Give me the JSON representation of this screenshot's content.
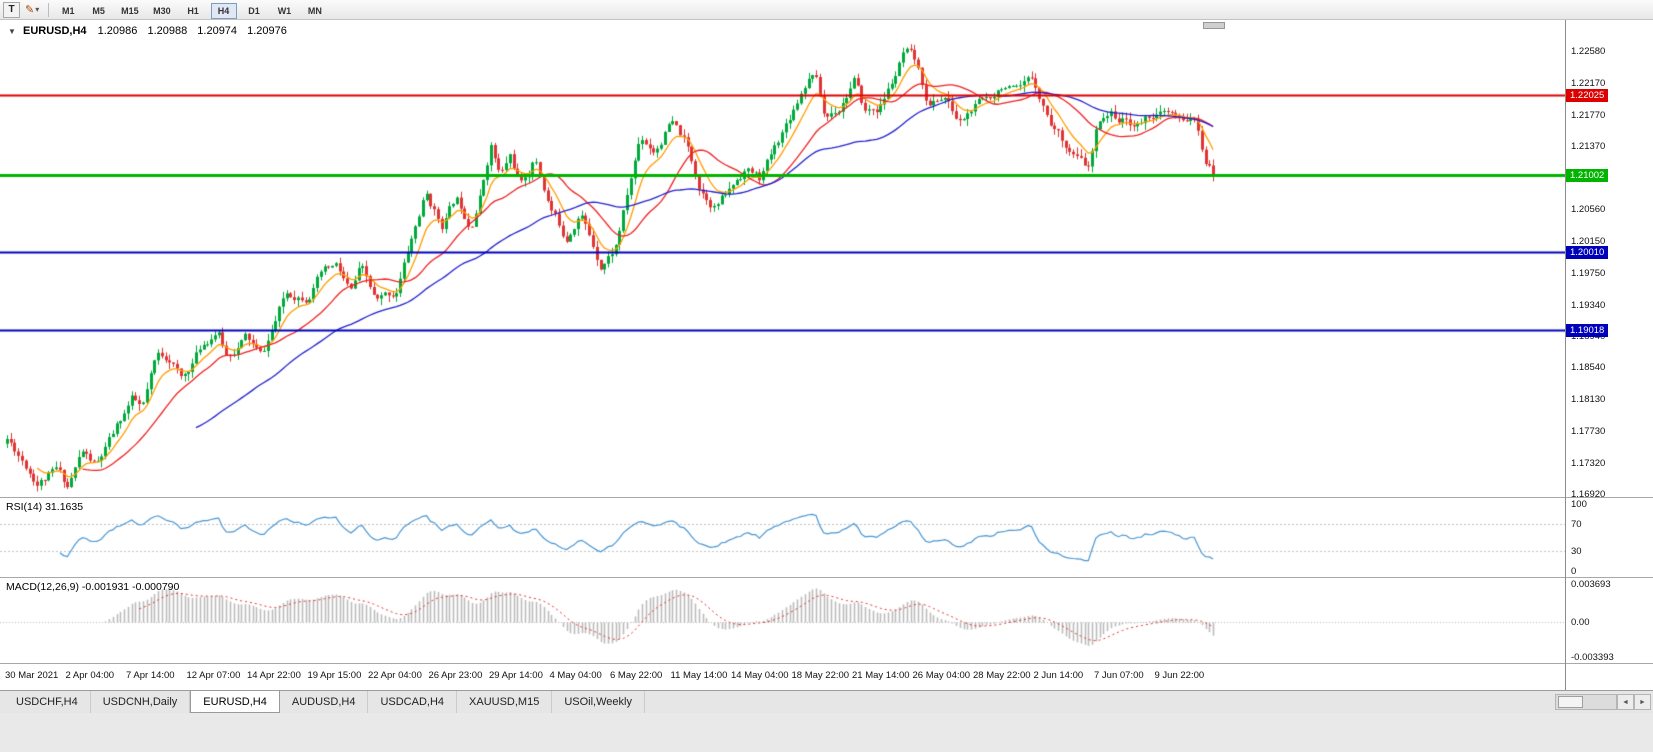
{
  "toolbar": {
    "text_tool_label": "T",
    "pencil_icon": "✎",
    "chevron": "▾",
    "timeframes": [
      "M1",
      "M5",
      "M15",
      "M30",
      "H1",
      "H4",
      "D1",
      "W1",
      "MN"
    ],
    "active_timeframe": "H4"
  },
  "chart_header": {
    "collapse_icon": "▼",
    "symbol": "EURUSD,H4",
    "open": "1.20986",
    "high": "1.20988",
    "low": "1.20974",
    "close": "1.20976"
  },
  "price_axis": [
    "1.22580",
    "1.22170",
    "1.21770",
    "1.21370",
    "1.20960",
    "1.20560",
    "1.20150",
    "1.19750",
    "1.19340",
    "1.18940",
    "1.18540",
    "1.18130",
    "1.17730",
    "1.17320",
    "1.16920"
  ],
  "hlines": [
    {
      "price": 1.22025,
      "label": "1.22025",
      "color": "#dd0000",
      "width": 2
    },
    {
      "price": 1.21002,
      "label": "1.21002",
      "color": "#00b400",
      "width": 3
    },
    {
      "price": 1.2001,
      "label": "1.20010",
      "color": "#0000bb",
      "width": 2
    },
    {
      "price": 1.19018,
      "label": "1.19018",
      "color": "#0000bb",
      "width": 2
    }
  ],
  "time_axis": [
    "30 Mar 2021",
    "2 Apr 04:00",
    "7 Apr 14:00",
    "12 Apr 07:00",
    "14 Apr 22:00",
    "19 Apr 15:00",
    "22 Apr 04:00",
    "26 Apr 23:00",
    "29 Apr 14:00",
    "4 May 04:00",
    "6 May 22:00",
    "11 May 14:00",
    "14 May 04:00",
    "18 May 22:00",
    "21 May 14:00",
    "26 May 04:00",
    "28 May 22:00",
    "2 Jun 14:00",
    "7 Jun 07:00",
    "9 Jun 22:00"
  ],
  "rsi_panel": {
    "label": "RSI(14) 31.1635",
    "axis_values": [
      "100",
      "70",
      "30",
      "0"
    ]
  },
  "macd_panel": {
    "label": "MACD(12,26,9) -0.001931 -0.000790",
    "axis_values": [
      "0.003693",
      "0.00",
      "-0.003393"
    ]
  },
  "tabs": {
    "items": [
      "USDCHF,H4",
      "USDCNH,Daily",
      "EURUSD,H4",
      "AUDUSD,H4",
      "USDCAD,H4",
      "XAUUSD,M15",
      "USOil,Weekly"
    ],
    "active": "EURUSD,H4"
  },
  "tab_scroll": {
    "left": "◄",
    "right": "►"
  },
  "chart_data": {
    "type": "candlestick",
    "symbol": "EURUSD",
    "timeframe": "H4",
    "n_candles": 320,
    "view_price_max": 1.2298,
    "view_price_min": 1.1688,
    "up_color": "#00a93c",
    "down_color": "#e03434",
    "noise": 0.0016,
    "wick": 0.0009,
    "seed": 11,
    "last_close": 1.20976,
    "moving_averages": [
      {
        "type": "ema",
        "period": 8,
        "color": "#ff9c00"
      },
      {
        "type": "sma",
        "period": 20,
        "color": "#ee2222"
      },
      {
        "type": "sma",
        "period": 50,
        "color": "#2222cc"
      }
    ],
    "rsi": {
      "period": 14,
      "color": "#4a96d2",
      "levels": [
        70,
        30
      ]
    },
    "macd": {
      "fast": 12,
      "slow": 26,
      "signal": 9,
      "hist_color": "#bbbbbb",
      "signal_color": "#e03434"
    },
    "macd_range": [
      -0.0034,
      0.0037
    ],
    "waypoints": [
      [
        0,
        1.1762
      ],
      [
        0.012,
        1.174
      ],
      [
        0.025,
        1.1712
      ],
      [
        0.041,
        1.1722
      ],
      [
        0.05,
        1.17
      ],
      [
        0.062,
        1.1745
      ],
      [
        0.074,
        1.1725
      ],
      [
        0.087,
        1.176
      ],
      [
        0.103,
        1.181
      ],
      [
        0.112,
        1.1795
      ],
      [
        0.124,
        1.186
      ],
      [
        0.136,
        1.1865
      ],
      [
        0.145,
        1.1835
      ],
      [
        0.161,
        1.188
      ],
      [
        0.174,
        1.1905
      ],
      [
        0.182,
        1.187
      ],
      [
        0.198,
        1.1895
      ],
      [
        0.211,
        1.1865
      ],
      [
        0.231,
        1.1945
      ],
      [
        0.248,
        1.195
      ],
      [
        0.26,
        1.1975
      ],
      [
        0.273,
        1.198
      ],
      [
        0.285,
        1.1945
      ],
      [
        0.293,
        1.1975
      ],
      [
        0.306,
        1.193
      ],
      [
        0.322,
        1.1945
      ],
      [
        0.335,
        1.2015
      ],
      [
        0.347,
        1.2075
      ],
      [
        0.36,
        1.2035
      ],
      [
        0.372,
        1.207
      ],
      [
        0.384,
        1.204
      ],
      [
        0.393,
        1.2085
      ],
      [
        0.401,
        1.2145
      ],
      [
        0.409,
        1.21
      ],
      [
        0.417,
        1.2125
      ],
      [
        0.426,
        1.2085
      ],
      [
        0.438,
        1.212
      ],
      [
        0.45,
        1.206
      ],
      [
        0.463,
        1.202
      ],
      [
        0.475,
        1.206
      ],
      [
        0.483,
        1.2025
      ],
      [
        0.492,
        1.199
      ],
      [
        0.504,
        1.201
      ],
      [
        0.512,
        1.206
      ],
      [
        0.525,
        1.215
      ],
      [
        0.537,
        1.2135
      ],
      [
        0.55,
        1.217
      ],
      [
        0.562,
        1.214
      ],
      [
        0.574,
        1.2085
      ],
      [
        0.587,
        1.2065
      ],
      [
        0.599,
        1.208
      ],
      [
        0.612,
        1.211
      ],
      [
        0.624,
        1.2095
      ],
      [
        0.636,
        1.213
      ],
      [
        0.649,
        1.2175
      ],
      [
        0.661,
        1.222
      ],
      [
        0.669,
        1.224
      ],
      [
        0.678,
        1.2175
      ],
      [
        0.69,
        1.219
      ],
      [
        0.702,
        1.2225
      ],
      [
        0.711,
        1.218
      ],
      [
        0.723,
        1.2185
      ],
      [
        0.736,
        1.2225
      ],
      [
        0.744,
        1.2255
      ],
      [
        0.752,
        1.224
      ],
      [
        0.764,
        1.2185
      ],
      [
        0.777,
        1.22
      ],
      [
        0.789,
        1.2165
      ],
      [
        0.802,
        1.2185
      ],
      [
        0.814,
        1.2195
      ],
      [
        0.826,
        1.222
      ],
      [
        0.839,
        1.22
      ],
      [
        0.851,
        1.2215
      ],
      [
        0.864,
        1.217
      ],
      [
        0.876,
        1.2145
      ],
      [
        0.888,
        1.212
      ],
      [
        0.897,
        1.2105
      ],
      [
        0.905,
        1.2165
      ],
      [
        0.913,
        1.218
      ],
      [
        0.926,
        1.217
      ],
      [
        0.938,
        1.2165
      ],
      [
        0.95,
        1.218
      ],
      [
        0.963,
        1.2175
      ],
      [
        0.975,
        1.216
      ],
      [
        0.983,
        1.2175
      ],
      [
        0.992,
        1.212
      ],
      [
        1,
        1.2098
      ]
    ]
  }
}
